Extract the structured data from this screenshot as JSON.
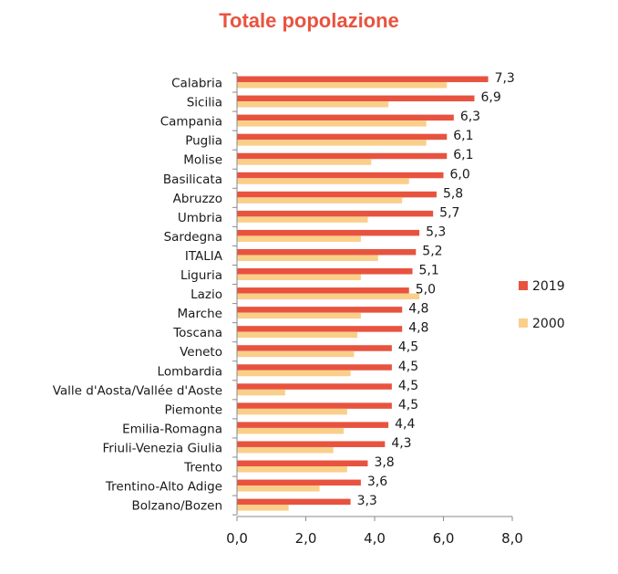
{
  "chart_data": {
    "type": "bar",
    "orientation": "horizontal",
    "title": "Totale popolazione",
    "categories": [
      "Calabria",
      "Sicilia",
      "Campania",
      "Puglia",
      "Molise",
      "Basilicata",
      "Abruzzo",
      "Umbria",
      "Sardegna",
      "ITALIA",
      "Liguria",
      "Lazio",
      "Marche",
      "Toscana",
      "Veneto",
      "Lombardia",
      "Valle d'Aosta/Vallée d'Aoste",
      "Piemonte",
      "Emilia-Romagna",
      "Friuli-Venezia Giulia",
      "Trento",
      "Trentino-Alto Adige",
      "Bolzano/Bozen"
    ],
    "series": [
      {
        "name": "2019",
        "color": "#e8533f",
        "values": [
          7.3,
          6.9,
          6.3,
          6.1,
          6.1,
          6.0,
          5.8,
          5.7,
          5.3,
          5.2,
          5.1,
          5.0,
          4.8,
          4.8,
          4.5,
          4.5,
          4.5,
          4.5,
          4.4,
          4.3,
          3.8,
          3.6,
          3.3
        ],
        "data_labels": [
          "7,3",
          "6,9",
          "6,3",
          "6,1",
          "6,1",
          "6,0",
          "5,8",
          "5,7",
          "5,3",
          "5,2",
          "5,1",
          "5,0",
          "4,8",
          "4,8",
          "4,5",
          "4,5",
          "4,5",
          "4,5",
          "4,4",
          "4,3",
          "3,8",
          "3,6",
          "3,3"
        ]
      },
      {
        "name": "2000",
        "color": "#f9cf8a",
        "values": [
          6.1,
          4.4,
          5.5,
          5.5,
          3.9,
          5.0,
          4.8,
          3.8,
          3.6,
          4.1,
          3.6,
          5.3,
          3.6,
          3.5,
          3.4,
          3.3,
          1.4,
          3.2,
          3.1,
          2.8,
          3.2,
          2.4,
          1.5
        ]
      }
    ],
    "xlim": [
      0,
      8
    ],
    "xticks": [
      0,
      2,
      4,
      6,
      8
    ],
    "xtick_labels": [
      "0,0",
      "2,0",
      "4,0",
      "6,0",
      "8,0"
    ],
    "legend_position": "right",
    "grid": false
  }
}
